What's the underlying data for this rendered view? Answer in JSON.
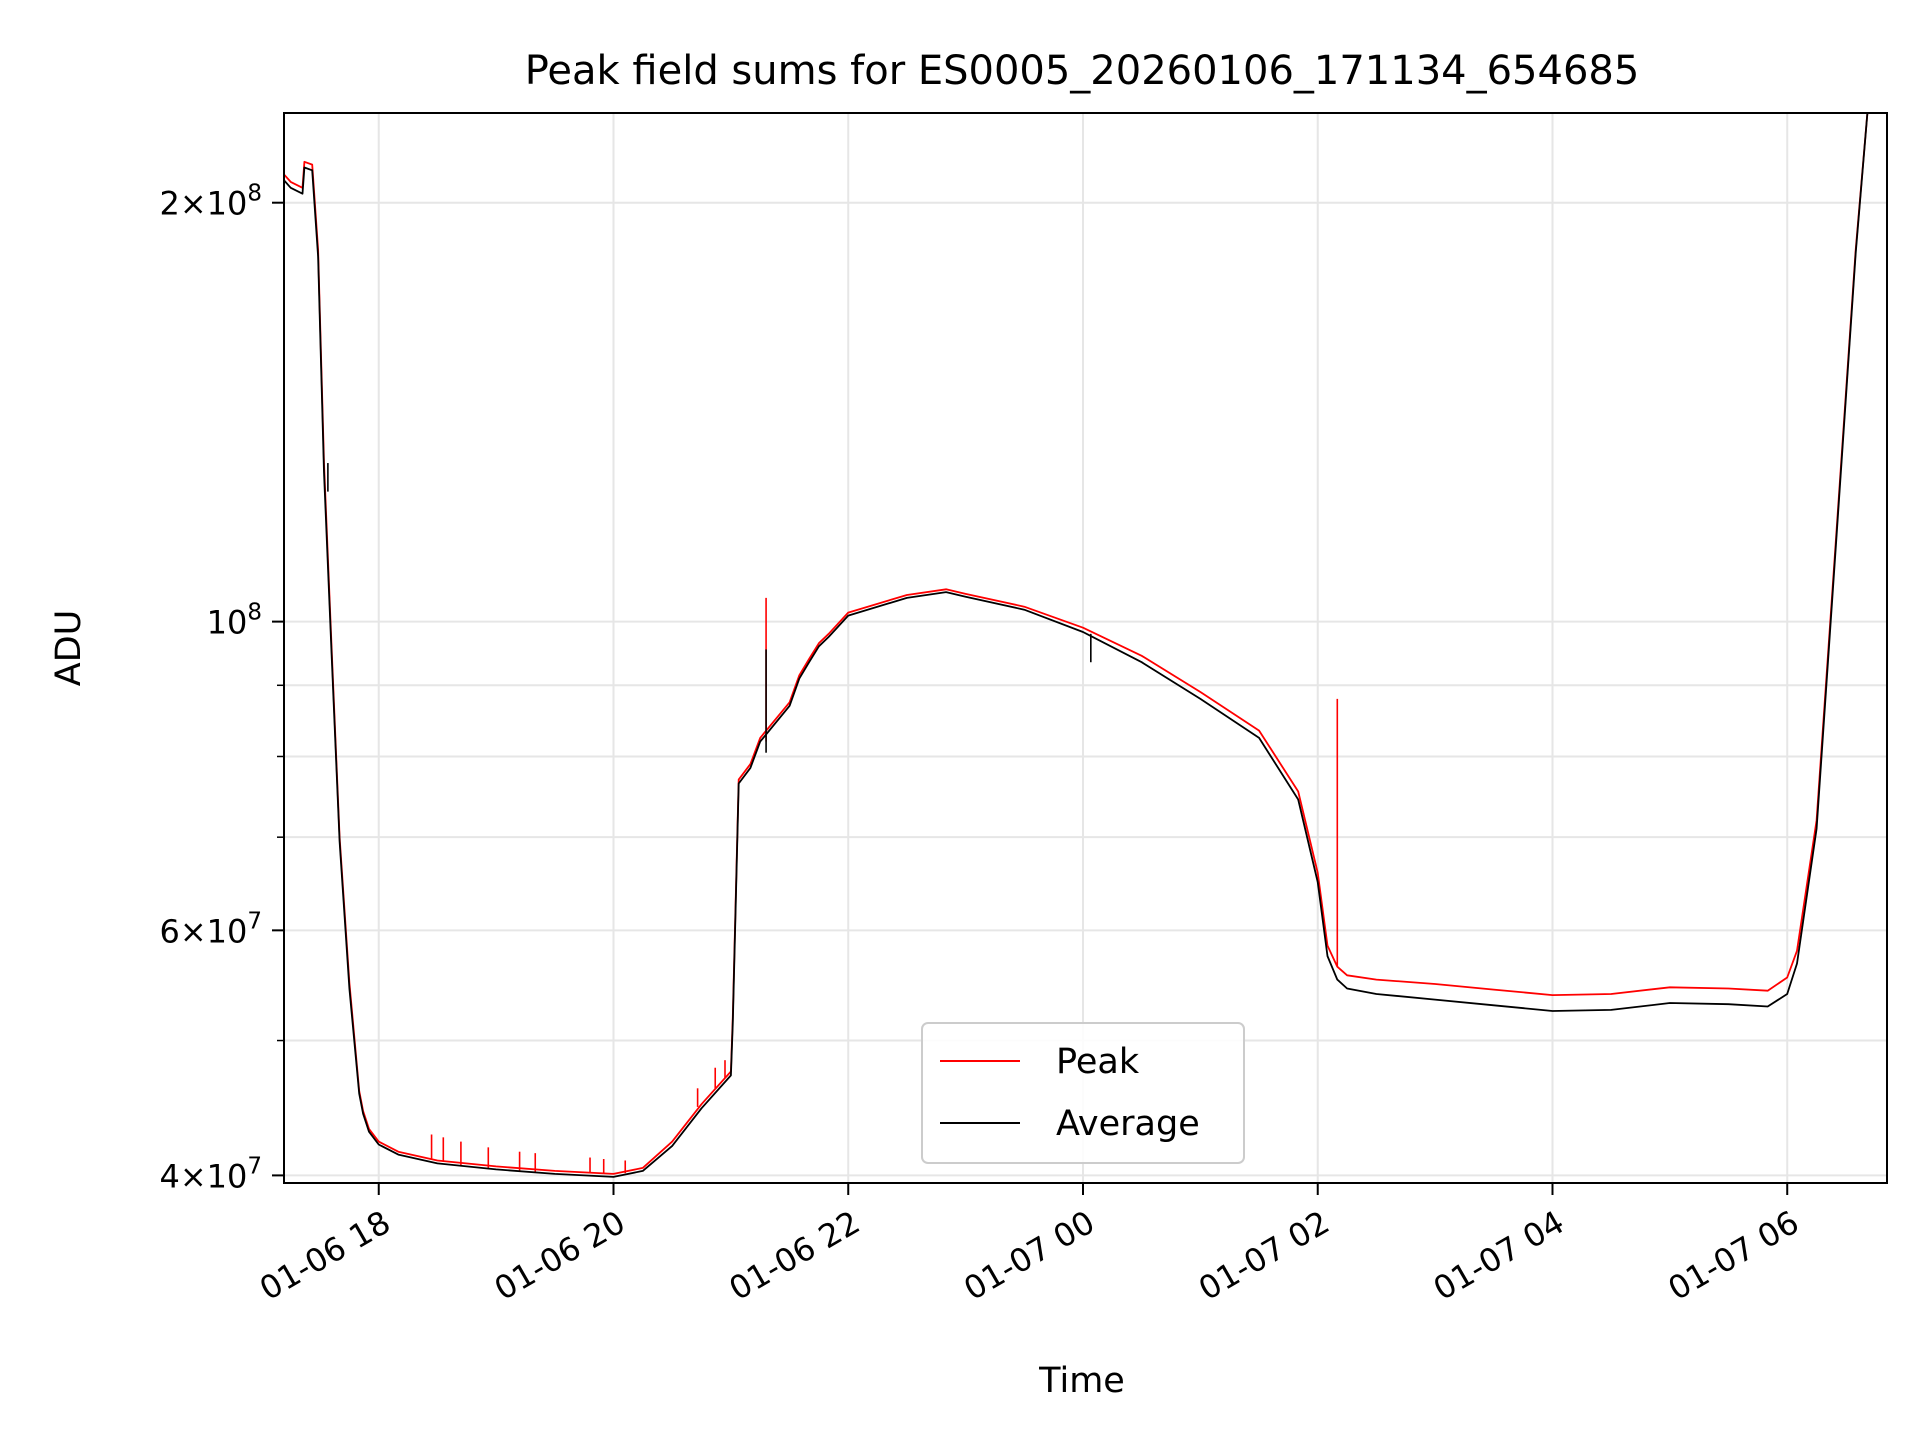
{
  "chart_data": {
    "type": "line",
    "title": "Peak field sums for ES0005_20260106_171134_654685",
    "xlabel": "Time",
    "ylabel": "ADU",
    "y_scale": "log",
    "xlim": [
      "2026-01-06T17:11:34",
      "2026-01-07T06:51:00"
    ],
    "ylim": [
      39500000,
      232000000
    ],
    "grid": true,
    "legend_position": "lower center",
    "x_ticks": [
      {
        "label": "01-06 18",
        "value": "2026-01-06T18:00"
      },
      {
        "label": "01-06 20",
        "value": "2026-01-06T20:00"
      },
      {
        "label": "01-06 22",
        "value": "2026-01-06T22:00"
      },
      {
        "label": "01-07 00",
        "value": "2026-01-07T00:00"
      },
      {
        "label": "01-07 02",
        "value": "2026-01-07T02:00"
      },
      {
        "label": "01-07 04",
        "value": "2026-01-07T04:00"
      },
      {
        "label": "01-07 06",
        "value": "2026-01-07T06:00"
      }
    ],
    "y_ticks": [
      {
        "mantissa": "4",
        "exponent": "7",
        "value": 40000000
      },
      {
        "mantissa": "6",
        "exponent": "7",
        "value": 60000000
      },
      {
        "mantissa": "",
        "exponent": "8",
        "value": 100000000
      },
      {
        "mantissa": "2",
        "exponent": "8",
        "value": 200000000
      }
    ],
    "series": [
      {
        "name": "Peak",
        "color": "#ff0000",
        "x": [
          "2026-01-06T17:11",
          "2026-01-06T17:15",
          "2026-01-06T17:21",
          "2026-01-06T17:22",
          "2026-01-06T17:26",
          "2026-01-06T17:29",
          "2026-01-06T17:32",
          "2026-01-06T17:36",
          "2026-01-06T17:40",
          "2026-01-06T17:45",
          "2026-01-06T17:50",
          "2026-01-06T17:52",
          "2026-01-06T17:55",
          "2026-01-06T18:00",
          "2026-01-06T18:10",
          "2026-01-06T18:30",
          "2026-01-06T19:00",
          "2026-01-06T19:30",
          "2026-01-06T20:00",
          "2026-01-06T20:15",
          "2026-01-06T20:30",
          "2026-01-06T20:45",
          "2026-01-06T21:00",
          "2026-01-06T21:01",
          "2026-01-06T21:04",
          "2026-01-06T21:10",
          "2026-01-06T21:15",
          "2026-01-06T21:30",
          "2026-01-06T21:35",
          "2026-01-06T21:40",
          "2026-01-06T21:45",
          "2026-01-06T21:50",
          "2026-01-06T22:00",
          "2026-01-06T22:30",
          "2026-01-06T22:50",
          "2026-01-06T23:00",
          "2026-01-06T23:30",
          "2026-01-07T00:00",
          "2026-01-07T00:30",
          "2026-01-07T01:00",
          "2026-01-07T01:30",
          "2026-01-07T01:50",
          "2026-01-07T02:00",
          "2026-01-07T02:05",
          "2026-01-07T02:10",
          "2026-01-07T02:15",
          "2026-01-07T02:30",
          "2026-01-07T03:00",
          "2026-01-07T03:30",
          "2026-01-07T04:00",
          "2026-01-07T04:30",
          "2026-01-07T05:00",
          "2026-01-07T05:30",
          "2026-01-07T05:50",
          "2026-01-07T06:00",
          "2026-01-07T06:05",
          "2026-01-07T06:15",
          "2026-01-07T06:25",
          "2026-01-07T06:35",
          "2026-01-07T06:41",
          "2026-01-07T06:51"
        ],
        "values": [
          210000000,
          207000000,
          205000000,
          214000000,
          213000000,
          185000000,
          130000000,
          95000000,
          70000000,
          55000000,
          46000000,
          44500000,
          43200000,
          42300000,
          41600000,
          41000000,
          40600000,
          40300000,
          40100000,
          40500000,
          42300000,
          45000000,
          47500000,
          52000000,
          77000000,
          79000000,
          82500000,
          87500000,
          91500000,
          94000000,
          96500000,
          98000000,
          101500000,
          104500000,
          105500000,
          104700000,
          102500000,
          99000000,
          94500000,
          89000000,
          83500000,
          75500000,
          66000000,
          58500000,
          56500000,
          55700000,
          55300000,
          54900000,
          54400000,
          53900000,
          54000000,
          54600000,
          54500000,
          54300000,
          55500000,
          58000000,
          72000000,
          115000000,
          185000000,
          232000000,
          232000000
        ],
        "spikes": [
          {
            "x": "2026-01-06T21:18",
            "values": [
              82000000,
              104000000
            ]
          },
          {
            "x": "2026-01-07T02:10",
            "values": [
              56500000,
              88000000
            ]
          },
          {
            "x": "2026-01-06T18:27",
            "values": [
              41100000,
              42800000
            ]
          },
          {
            "x": "2026-01-06T18:33",
            "values": [
              40900000,
              42600000
            ]
          },
          {
            "x": "2026-01-06T18:42",
            "values": [
              40700000,
              42300000
            ]
          },
          {
            "x": "2026-01-06T18:56",
            "values": [
              40500000,
              41900000
            ]
          },
          {
            "x": "2026-01-06T19:12",
            "values": [
              40300000,
              41600000
            ]
          },
          {
            "x": "2026-01-06T19:20",
            "values": [
              40250000,
              41500000
            ]
          },
          {
            "x": "2026-01-06T19:48",
            "values": [
              40150000,
              41200000
            ]
          },
          {
            "x": "2026-01-06T19:55",
            "values": [
              40100000,
              41100000
            ]
          },
          {
            "x": "2026-01-06T20:06",
            "values": [
              40150000,
              41000000
            ]
          },
          {
            "x": "2026-01-06T20:43",
            "values": [
              44800000,
              46200000
            ]
          },
          {
            "x": "2026-01-06T20:52",
            "values": [
              46200000,
              47800000
            ]
          },
          {
            "x": "2026-01-06T20:57",
            "values": [
              47000000,
              48400000
            ]
          }
        ]
      },
      {
        "name": "Average",
        "color": "#000000",
        "x": [
          "2026-01-06T17:11",
          "2026-01-06T17:15",
          "2026-01-06T17:21",
          "2026-01-06T17:22",
          "2026-01-06T17:26",
          "2026-01-06T17:29",
          "2026-01-06T17:32",
          "2026-01-06T17:36",
          "2026-01-06T17:40",
          "2026-01-06T17:45",
          "2026-01-06T17:50",
          "2026-01-06T17:52",
          "2026-01-06T17:55",
          "2026-01-06T18:00",
          "2026-01-06T18:10",
          "2026-01-06T18:30",
          "2026-01-06T19:00",
          "2026-01-06T19:30",
          "2026-01-06T20:00",
          "2026-01-06T20:15",
          "2026-01-06T20:30",
          "2026-01-06T20:45",
          "2026-01-06T21:00",
          "2026-01-06T21:01",
          "2026-01-06T21:04",
          "2026-01-06T21:10",
          "2026-01-06T21:15",
          "2026-01-06T21:30",
          "2026-01-06T21:35",
          "2026-01-06T21:40",
          "2026-01-06T21:45",
          "2026-01-06T21:50",
          "2026-01-06T22:00",
          "2026-01-06T22:30",
          "2026-01-06T22:50",
          "2026-01-06T23:00",
          "2026-01-06T23:30",
          "2026-01-07T00:00",
          "2026-01-07T00:30",
          "2026-01-07T01:00",
          "2026-01-07T01:30",
          "2026-01-07T01:50",
          "2026-01-07T02:00",
          "2026-01-07T02:05",
          "2026-01-07T02:10",
          "2026-01-07T02:15",
          "2026-01-07T02:30",
          "2026-01-07T03:00",
          "2026-01-07T03:30",
          "2026-01-07T04:00",
          "2026-01-07T04:30",
          "2026-01-07T05:00",
          "2026-01-07T05:30",
          "2026-01-07T05:50",
          "2026-01-07T06:00",
          "2026-01-07T06:05",
          "2026-01-07T06:15",
          "2026-01-07T06:25",
          "2026-01-07T06:35",
          "2026-01-07T06:41",
          "2026-01-07T06:51"
        ],
        "values": [
          208000000,
          205000000,
          203000000,
          212000000,
          211000000,
          183000000,
          128000000,
          94000000,
          69500000,
          54500000,
          45800000,
          44300000,
          43000000,
          42100000,
          41400000,
          40800000,
          40400000,
          40100000,
          39900000,
          40300000,
          42000000,
          44700000,
          47200000,
          51500000,
          76500000,
          78500000,
          82000000,
          87000000,
          91000000,
          93500000,
          96000000,
          97500000,
          101000000,
          104000000,
          105000000,
          104200000,
          102000000,
          98300000,
          93500000,
          88000000,
          82500000,
          74500000,
          65000000,
          57500000,
          55300000,
          54500000,
          54000000,
          53500000,
          53000000,
          52500000,
          52600000,
          53200000,
          53100000,
          52900000,
          54000000,
          56800000,
          71000000,
          114000000,
          184000000,
          232000000,
          232000000
        ],
        "spikes": [
          {
            "x": "2026-01-06T21:18",
            "values": [
              80500000,
              95500000
            ]
          },
          {
            "x": "2026-01-07T00:04",
            "values": [
              93500000,
              98000000
            ]
          },
          {
            "x": "2026-01-06T17:34",
            "values": [
              124000000,
              130000000
            ]
          }
        ]
      }
    ]
  }
}
